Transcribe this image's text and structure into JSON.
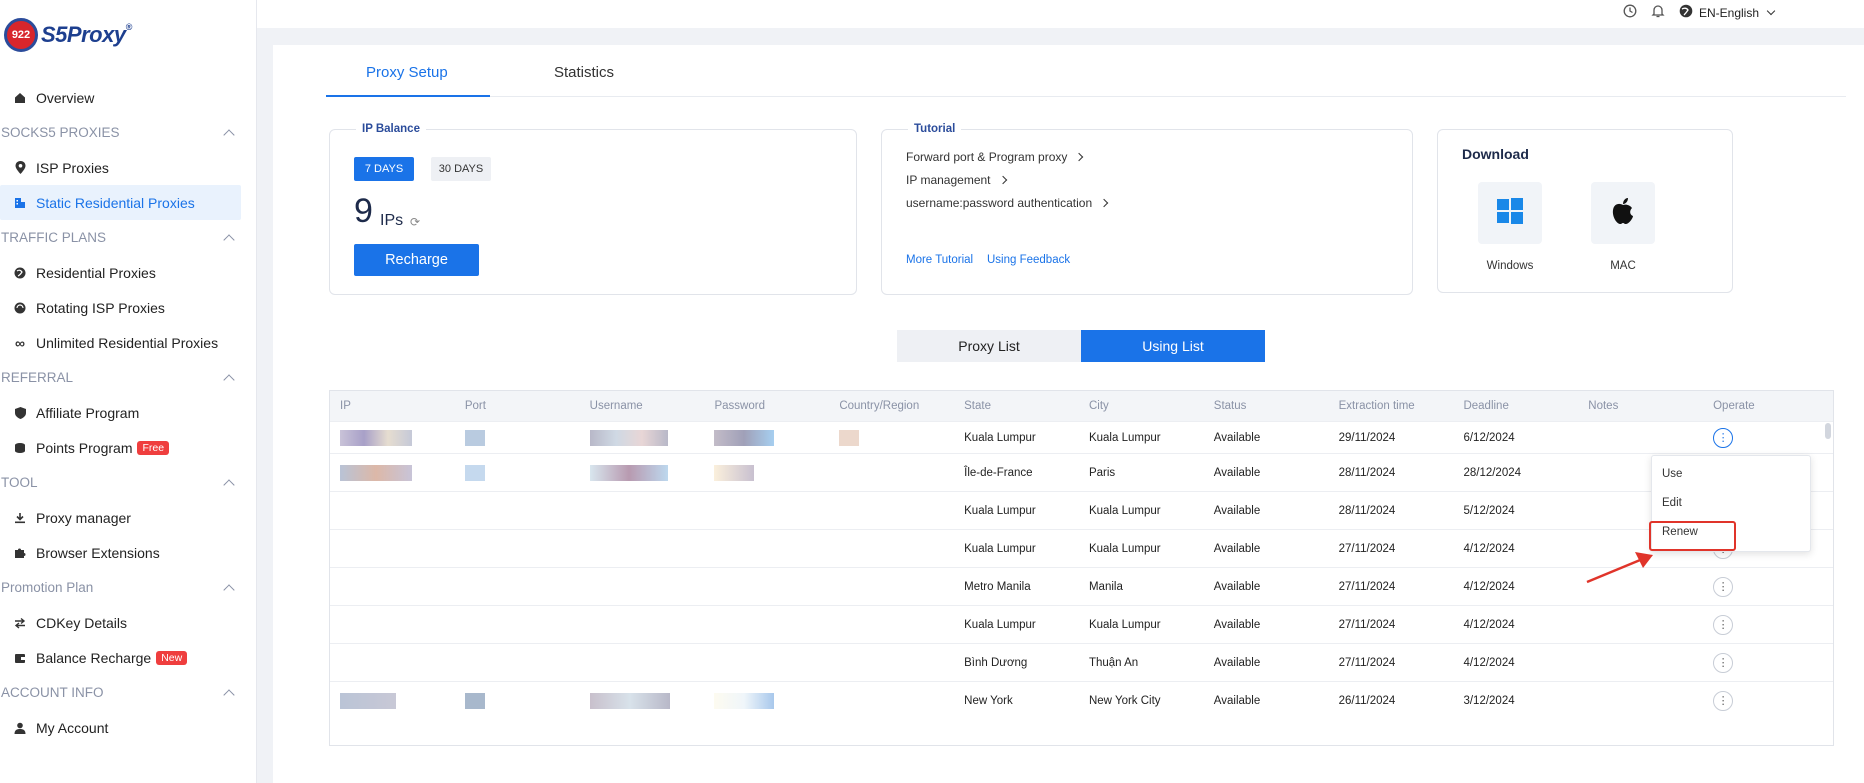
{
  "brand": {
    "badge": "922",
    "name": "S5Proxy",
    "reg": "®"
  },
  "sidebar": {
    "overview": "Overview",
    "sections": [
      {
        "title": "SOCKS5 PROXIES",
        "items": [
          "ISP Proxies",
          "Static Residential Proxies"
        ]
      },
      {
        "title": "TRAFFIC PLANS",
        "items": [
          "Residential Proxies",
          "Rotating ISP Proxies",
          "Unlimited Residential Proxies"
        ]
      },
      {
        "title": "REFERRAL",
        "items": [
          "Affiliate Program",
          "Points Program"
        ]
      },
      {
        "title": "TOOL",
        "items": [
          "Proxy manager",
          "Browser Extensions"
        ]
      },
      {
        "title": "Promotion Plan",
        "items": [
          "CDKey Details",
          "Balance Recharge"
        ]
      },
      {
        "title": "ACCOUNT INFO",
        "items": [
          "My Account"
        ]
      }
    ],
    "badges": {
      "points": "Free",
      "balance": "New"
    }
  },
  "topbar": {
    "language": "EN-English"
  },
  "tabs": [
    "Proxy Setup",
    "Statistics"
  ],
  "ip_balance": {
    "title": "IP Balance",
    "days7": "7 DAYS",
    "days30": "30 DAYS",
    "count": "9",
    "unit": "IPs",
    "recharge": "Recharge"
  },
  "tutorial": {
    "title": "Tutorial",
    "links": [
      "Forward port & Program proxy",
      "IP management",
      "username:password authentication"
    ],
    "more": "More Tutorial",
    "feedback": "Using Feedback"
  },
  "download": {
    "title": "Download",
    "windows": "Windows",
    "mac": "MAC"
  },
  "toggle": {
    "proxy_list": "Proxy List",
    "using_list": "Using List"
  },
  "table": {
    "headers": [
      "IP",
      "Port",
      "Username",
      "Password",
      "Country/Region",
      "State",
      "City",
      "Status",
      "Extraction time",
      "Deadline",
      "Notes",
      "Operate"
    ],
    "rows": [
      {
        "state": "Kuala Lumpur",
        "city": "Kuala Lumpur",
        "status": "Available",
        "extraction": "29/11/2024",
        "deadline": "6/12/2024"
      },
      {
        "state": "Île-de-France",
        "city": "Paris",
        "status": "Available",
        "extraction": "28/11/2024",
        "deadline": "28/12/2024"
      },
      {
        "state": "Kuala Lumpur",
        "city": "Kuala Lumpur",
        "status": "Available",
        "extraction": "28/11/2024",
        "deadline": "5/12/2024"
      },
      {
        "state": "Kuala Lumpur",
        "city": "Kuala Lumpur",
        "status": "Available",
        "extraction": "27/11/2024",
        "deadline": "4/12/2024"
      },
      {
        "state": "Metro Manila",
        "city": "Manila",
        "status": "Available",
        "extraction": "27/11/2024",
        "deadline": "4/12/2024"
      },
      {
        "state": "Kuala Lumpur",
        "city": "Kuala Lumpur",
        "status": "Available",
        "extraction": "27/11/2024",
        "deadline": "4/12/2024"
      },
      {
        "state": "Bình Dương",
        "city": "Thuận An",
        "status": "Available",
        "extraction": "27/11/2024",
        "deadline": "4/12/2024"
      },
      {
        "state": "New York",
        "city": "New York City",
        "status": "Available",
        "extraction": "26/11/2024",
        "deadline": "3/12/2024"
      }
    ]
  },
  "menu": {
    "use": "Use",
    "edit": "Edit",
    "renew": "Renew"
  },
  "colors": {
    "accent": "#1a73e8",
    "highlight": "#e0342a"
  }
}
